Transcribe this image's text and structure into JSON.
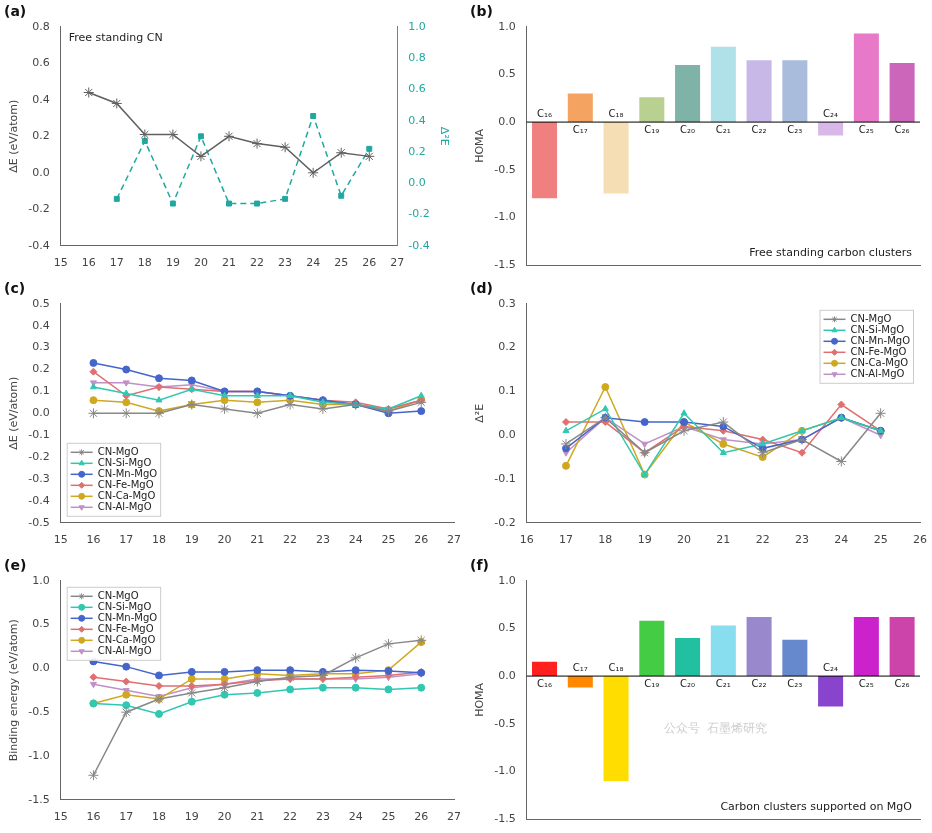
{
  "chart_data": [
    {
      "type": "line",
      "title": "(a)",
      "y_label": "ΔE (eV/atom)",
      "y2_label": "Δ²E",
      "annotations": [
        {
          "text": "Free standing CN"
        }
      ],
      "xlim": [
        15,
        27
      ],
      "xticks": [
        15,
        16,
        17,
        18,
        19,
        20,
        21,
        22,
        23,
        24,
        25,
        26,
        27
      ],
      "ylim": [
        -0.4,
        0.8
      ],
      "yticks": [
        -0.4,
        -0.2,
        {
          "value": 0,
          "label": "0.0"
        },
        0.2,
        0.4,
        0.6,
        0.8
      ],
      "y2lim": [
        -0.4,
        1.0
      ],
      "y2ticks": [
        -0.4,
        -0.2,
        {
          "value": 0,
          "label": "0.0"
        },
        0.2,
        0.4,
        0.6,
        0.8,
        {
          "value": 1,
          "label": "1.0"
        }
      ],
      "grid": false,
      "series": [
        {
          "x": [
            16,
            17,
            18,
            19,
            20,
            21,
            22,
            23,
            24,
            25,
            26
          ],
          "values": [
            0.44,
            0.38,
            0.21,
            0.21,
            0.09,
            0.2,
            0.16,
            0.14,
            0.0,
            0.11,
            0.09
          ],
          "color": "#606060",
          "marker": "star",
          "line_style": "solid"
        },
        {
          "x": [
            17,
            18,
            19,
            20,
            21,
            22,
            23,
            24,
            25,
            26
          ],
          "values": [
            -0.1,
            0.27,
            -0.13,
            0.3,
            -0.13,
            -0.13,
            -0.1,
            0.43,
            -0.08,
            0.22
          ],
          "color": "#20a8a0",
          "marker": "square",
          "line_style": "dashed",
          "axis": "y2"
        }
      ]
    },
    {
      "type": "bar",
      "title": "(b)",
      "y_label": "HOMA",
      "annotations": [
        {
          "text": "Free standing carbon clusters"
        }
      ],
      "categories": [
        "C₁₆",
        "C₁₇",
        "C₁₈",
        "C₁₉",
        "C₂₀",
        "C₂₁",
        "C₂₂",
        "C₂₃",
        "C₂₄",
        "C₂₅",
        "C₂₆"
      ],
      "values": [
        -0.8,
        0.3,
        -0.75,
        0.26,
        0.6,
        0.79,
        0.65,
        0.65,
        -0.14,
        0.93,
        0.62
      ],
      "colors": [
        "#f08080",
        "#f4a460",
        "#f5deb3",
        "#b8d090",
        "#7fb3a8",
        "#b0e0e8",
        "#c8b8e8",
        "#aabcdb",
        "#d8b8e8",
        "#e878c8",
        "#cc66bb"
      ],
      "ylim": [
        -1.5,
        1.0
      ],
      "yticks": [
        -1.5,
        {
          "value": -1,
          "label": "-1.0"
        },
        -0.5,
        {
          "value": 0,
          "label": "0.0"
        },
        0.5,
        {
          "value": 1,
          "label": "1.0"
        }
      ],
      "grid": false,
      "tick_labels": "y"
    },
    {
      "type": "line",
      "title": "(c)",
      "y_label": "ΔE (eV/atom)",
      "x": [
        16,
        17,
        18,
        19,
        20,
        21,
        22,
        23,
        24,
        25,
        26
      ],
      "xlim": [
        15,
        27
      ],
      "xticks": [
        15,
        16,
        17,
        18,
        19,
        20,
        21,
        22,
        23,
        24,
        25,
        26,
        27
      ],
      "ylim": [
        -0.5,
        0.5
      ],
      "yticks": [
        -0.5,
        -0.4,
        -0.3,
        -0.2,
        -0.1,
        {
          "value": 0,
          "label": "0.0"
        },
        0.1,
        0.2,
        0.3,
        0.4,
        0.5
      ],
      "grid": false,
      "legend": "lower left",
      "series": [
        {
          "name": "CN-MgO",
          "color": "#888888",
          "marker": "star",
          "values": [
            0.0,
            0.0,
            0.0,
            0.04,
            0.02,
            0.0,
            0.04,
            0.02,
            0.04,
            0.01,
            0.05
          ]
        },
        {
          "name": "CN-Si-MgO",
          "color": "#30c8b0",
          "marker": "triangle_up",
          "values": [
            0.12,
            0.09,
            0.06,
            0.11,
            0.08,
            0.08,
            0.08,
            0.05,
            0.04,
            0.02,
            0.08
          ]
        },
        {
          "name": "CN-Mn-MgO",
          "color": "#4466cc",
          "marker": "circle",
          "values": [
            0.23,
            0.2,
            0.16,
            0.15,
            0.1,
            0.1,
            0.08,
            0.06,
            0.04,
            0.0,
            0.01
          ]
        },
        {
          "name": "CN-Fe-MgO",
          "color": "#e07070",
          "marker": "diamond",
          "values": [
            0.19,
            0.08,
            0.12,
            0.11,
            0.1,
            0.1,
            0.08,
            0.06,
            0.05,
            0.02,
            0.06
          ]
        },
        {
          "name": "CN-Ca-MgO",
          "color": "#d0a820",
          "marker": "circle",
          "values": [
            0.06,
            0.05,
            0.01,
            0.04,
            0.06,
            0.05,
            0.06,
            0.04,
            0.04,
            0.01,
            0.06
          ]
        },
        {
          "name": "CN-Al-MgO",
          "color": "#c090c8",
          "marker": "triangle_down",
          "values": [
            0.14,
            0.14,
            0.12,
            0.13,
            0.1,
            0.1,
            0.08,
            0.06,
            0.04,
            0.02,
            0.06
          ]
        }
      ]
    },
    {
      "type": "line",
      "title": "(d)",
      "y_label": "Δ²E",
      "x": [
        17,
        18,
        19,
        20,
        21,
        22,
        23,
        24,
        25
      ],
      "xlim": [
        16,
        26
      ],
      "xticks": [
        16,
        17,
        18,
        19,
        20,
        21,
        22,
        23,
        24,
        25,
        26
      ],
      "ylim": [
        -0.2,
        0.3
      ],
      "yticks": [
        -0.2,
        -0.1,
        {
          "value": 0,
          "label": "0.0"
        },
        0.1,
        0.2,
        0.3
      ],
      "grid": false,
      "legend": "upper right",
      "series": [
        {
          "name": "CN-MgO",
          "color": "#888888",
          "marker": "star",
          "values": [
            -0.02,
            0.04,
            -0.04,
            0.01,
            0.03,
            -0.04,
            -0.01,
            -0.06,
            0.05
          ]
        },
        {
          "name": "CN-Si-MgO",
          "color": "#30c8b0",
          "marker": "triangle_up",
          "values": [
            0.01,
            0.06,
            -0.09,
            0.05,
            -0.04,
            -0.02,
            0.01,
            0.04,
            0.01
          ]
        },
        {
          "name": "CN-Mn-MgO",
          "color": "#4466cc",
          "marker": "circle",
          "values": [
            -0.03,
            0.04,
            0.03,
            0.03,
            0.02,
            -0.03,
            -0.01,
            0.04,
            0.01
          ]
        },
        {
          "name": "CN-Fe-MgO",
          "color": "#e07070",
          "marker": "diamond",
          "values": [
            0.03,
            0.03,
            -0.04,
            0.02,
            0.01,
            -0.01,
            -0.04,
            0.07,
            0.01
          ]
        },
        {
          "name": "CN-Ca-MgO",
          "color": "#d0a820",
          "marker": "circle",
          "values": [
            -0.07,
            0.11,
            -0.09,
            0.03,
            -0.02,
            -0.05,
            0.01,
            0.04,
            0.01
          ]
        },
        {
          "name": "CN-Al-MgO",
          "color": "#c090c8",
          "marker": "triangle_down",
          "values": [
            -0.04,
            0.04,
            -0.02,
            0.02,
            -0.01,
            -0.02,
            -0.01,
            0.04,
            0.0
          ]
        }
      ]
    },
    {
      "type": "line",
      "title": "(e)",
      "y_label": "Binding energy (eV/atom)",
      "x": [
        16,
        17,
        18,
        19,
        20,
        21,
        22,
        23,
        24,
        25,
        26
      ],
      "xlim": [
        15,
        27
      ],
      "xticks": [
        15,
        16,
        17,
        18,
        19,
        20,
        21,
        22,
        23,
        24,
        25,
        26,
        27
      ],
      "ylim": [
        -1.5,
        1.0
      ],
      "yticks": [
        -1.5,
        {
          "value": -1,
          "label": "-1.0"
        },
        -0.5,
        {
          "value": 0,
          "label": "0.0"
        },
        0.5,
        {
          "value": 1,
          "label": "1.0"
        }
      ],
      "grid": false,
      "legend": "upper left",
      "series": [
        {
          "name": "CN-MgO",
          "color": "#888888",
          "marker": "star",
          "values": [
            -1.22,
            -0.5,
            -0.35,
            -0.28,
            -0.22,
            -0.15,
            -0.1,
            -0.08,
            0.12,
            0.28,
            0.32
          ]
        },
        {
          "name": "CN-Si-MgO",
          "color": "#30c8b0",
          "marker": "circle",
          "values": [
            -0.4,
            -0.42,
            -0.52,
            -0.38,
            -0.3,
            -0.28,
            -0.24,
            -0.22,
            -0.22,
            -0.24,
            -0.22
          ]
        },
        {
          "name": "CN-Mn-MgO",
          "color": "#4466cc",
          "marker": "circle",
          "values": [
            0.08,
            0.02,
            -0.08,
            -0.04,
            -0.04,
            -0.02,
            -0.02,
            -0.04,
            -0.02,
            -0.03,
            -0.05
          ]
        },
        {
          "name": "CN-Fe-MgO",
          "color": "#e07070",
          "marker": "diamond",
          "values": [
            -0.1,
            -0.15,
            -0.2,
            -0.2,
            -0.18,
            -0.14,
            -0.12,
            -0.12,
            -0.1,
            -0.08,
            -0.04
          ]
        },
        {
          "name": "CN-Ca-MgO",
          "color": "#d0a820",
          "marker": "circle",
          "values": [
            -0.4,
            -0.3,
            -0.35,
            -0.12,
            -0.12,
            -0.06,
            -0.08,
            -0.06,
            -0.06,
            -0.02,
            0.3
          ]
        },
        {
          "name": "CN-Al-MgO",
          "color": "#c090c8",
          "marker": "triangle_down",
          "values": [
            -0.18,
            -0.25,
            -0.32,
            -0.22,
            -0.18,
            -0.12,
            -0.12,
            -0.12,
            -0.12,
            -0.1,
            -0.06
          ]
        }
      ]
    },
    {
      "type": "bar",
      "title": "(f)",
      "y_label": "HOMA",
      "annotations": [
        {
          "text": "Carbon clusters supported on MgO"
        },
        {
          "text": "公众号  石墨烯研究"
        }
      ],
      "categories": [
        "C₁₆",
        "C₁₇",
        "C₁₈",
        "C₁₉",
        "C₂₀",
        "C₂₁",
        "C₂₂",
        "C₂₃",
        "C₂₄",
        "C₂₅",
        "C₂₆"
      ],
      "values": [
        0.15,
        -0.12,
        -1.1,
        0.58,
        0.4,
        0.53,
        0.62,
        0.38,
        -0.32,
        0.62,
        0.62
      ],
      "colors": [
        "#ff2020",
        "#ff8800",
        "#ffdd00",
        "#44cc44",
        "#20c0a0",
        "#88ddee",
        "#9988cc",
        "#6688cc",
        "#8844cc",
        "#cc22cc",
        "#cc44aa"
      ],
      "ylim": [
        -1.5,
        1.0
      ],
      "yticks": [
        -1.5,
        {
          "value": -1,
          "label": "-1.0"
        },
        -0.5,
        {
          "value": 0,
          "label": "0.0"
        },
        0.5,
        {
          "value": 1,
          "label": "1.0"
        }
      ],
      "grid": false,
      "tick_labels": "y"
    }
  ]
}
